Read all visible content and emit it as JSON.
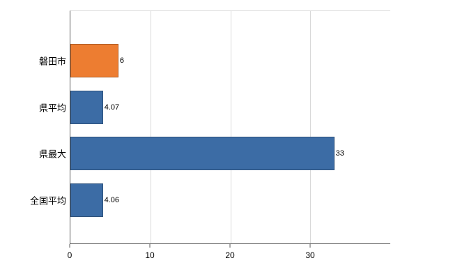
{
  "chart_data": {
    "type": "bar",
    "orientation": "horizontal",
    "title": "",
    "xlabel": "",
    "ylabel": "",
    "categories": [
      "磐田市",
      "県平均",
      "県最大",
      "全国平均"
    ],
    "values": [
      6,
      4.07,
      33,
      4.06
    ],
    "value_labels": [
      "6",
      "4.07",
      "33",
      "4.06"
    ],
    "bar_colors": [
      "#ed7d31",
      "#3c6ca5",
      "#3c6ca5",
      "#3c6ca5"
    ],
    "xlim": [
      0,
      40
    ],
    "xticks": [
      0,
      10,
      20,
      30
    ],
    "grid": true,
    "legend": "none",
    "colors": {
      "highlight_bar": "#ed7d31",
      "default_bar": "#3c6ca5",
      "gridline": "#d9d9d9",
      "axis_line": "#595959",
      "text": "#000000",
      "background": "#ffffff"
    }
  }
}
